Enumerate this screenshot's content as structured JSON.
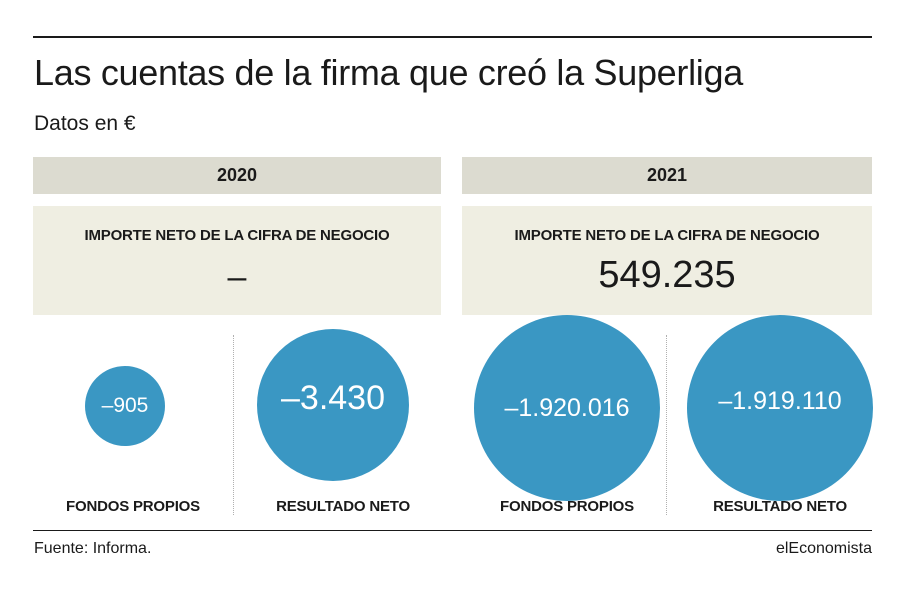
{
  "header": {
    "title": "Las cuentas de la firma que creó la Superliga",
    "subtitle": "Datos en €"
  },
  "chart_data": {
    "type": "bubble",
    "title": "Las cuentas de la firma que creó la Superliga",
    "subtitle": "Datos en €",
    "unit": "€",
    "years": [
      {
        "year": "2020",
        "revenue_label": "IMPORTE NETO DE LA CIFRA DE NEGOCIO",
        "revenue_display": "–",
        "revenue": null,
        "bubbles": [
          {
            "name": "FONDOS PROPIOS",
            "value": -905,
            "display": "–905"
          },
          {
            "name": "RESULTADO NETO",
            "value": -3430,
            "display": "–3.430"
          }
        ]
      },
      {
        "year": "2021",
        "revenue_label": "IMPORTE NETO DE LA CIFRA DE NEGOCIO",
        "revenue_display": "549.235",
        "revenue": 549235,
        "bubbles": [
          {
            "name": "FONDOS PROPIOS",
            "value": -1920016,
            "display": "–1.920.016"
          },
          {
            "name": "RESULTADO NETO",
            "value": -1919110,
            "display": "–1.919.110"
          }
        ]
      }
    ],
    "colors": {
      "bubble": "#3a97c3",
      "year_bar": "#dcdbd0",
      "kpi_box": "#efeee2"
    }
  },
  "footer": {
    "source": "Fuente: Informa.",
    "brand": "elEconomista"
  }
}
